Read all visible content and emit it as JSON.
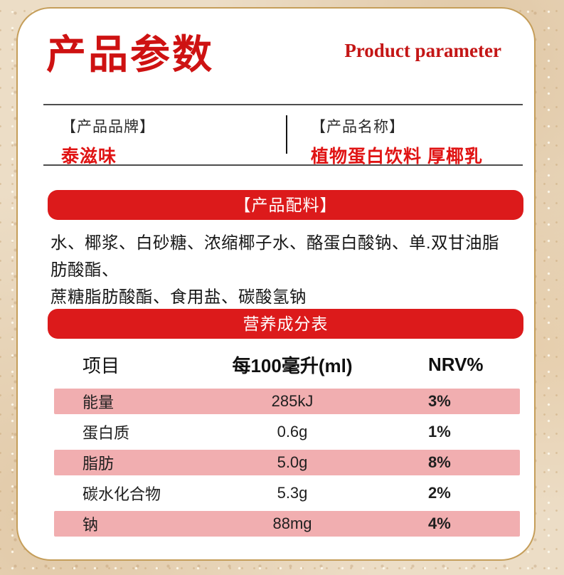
{
  "header": {
    "title_cn": "产品参数",
    "title_en": "Product parameter"
  },
  "info": {
    "brand_label": "【产品品牌】",
    "brand_value": "泰滋味",
    "name_label": "【产品名称】",
    "name_value": "植物蛋白饮料 厚椰乳"
  },
  "ingredients": {
    "banner": "【产品配料】",
    "line1": "水、椰浆、白砂糖、浓缩椰子水、酪蛋白酸钠、单.双甘油脂肪酸酯、",
    "line2": "蔗糖脂肪酸酯、食用盐、碳酸氢钠"
  },
  "nutrition": {
    "banner": "营养成分表",
    "headers": [
      "项目",
      "每100毫升(ml)",
      "NRV%"
    ],
    "rows": [
      {
        "item": "能量",
        "value": "285kJ",
        "nrv": "3%"
      },
      {
        "item": "蛋白质",
        "value": "0.6g",
        "nrv": "1%"
      },
      {
        "item": "脂肪",
        "value": "5.0g",
        "nrv": "8%"
      },
      {
        "item": "碳水化合物",
        "value": "5.3g",
        "nrv": "2%"
      },
      {
        "item": "钠",
        "value": "88mg",
        "nrv": "4%"
      }
    ]
  },
  "colors": {
    "banner_red": "#dc1a1b",
    "title_red": "#ce1212",
    "value_red": "#e01414",
    "pink_row": "#f1aeb0",
    "gold_border": "#c59e5a",
    "background_beige": "#ecddc6"
  }
}
